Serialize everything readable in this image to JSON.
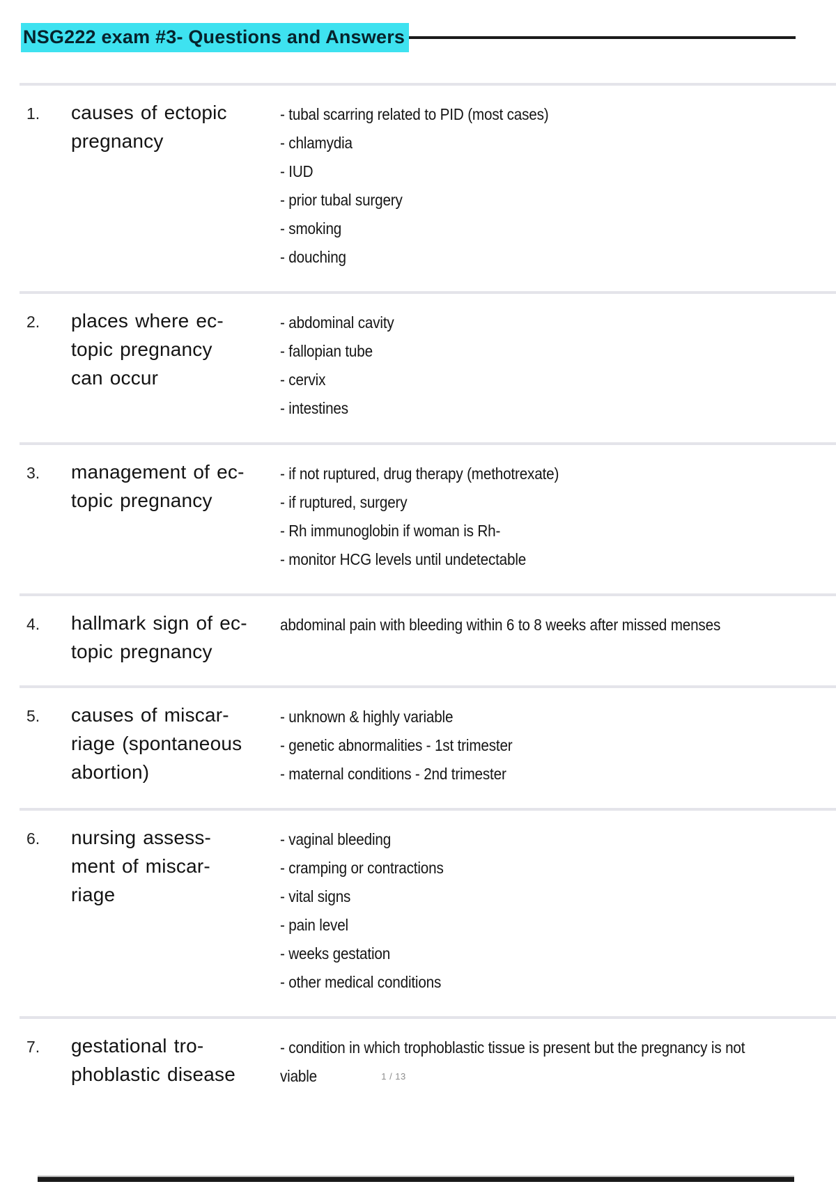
{
  "page": {
    "title": "NSG222 exam #3- Questions and Answers",
    "page_indicator": "1 / 13",
    "highlight_color": "#3ee2f0"
  },
  "items": [
    {
      "number": "1.",
      "question_lines": [
        "causes of ectopic",
        "pregnancy"
      ],
      "answer_lines": [
        "- tubal scarring related to PID (most cases)",
        "- chlamydia",
        "- IUD",
        "- prior tubal surgery",
        "- smoking",
        "- douching"
      ]
    },
    {
      "number": "2.",
      "question_lines": [
        "places where ec-",
        "topic pregnancy",
        "can occur"
      ],
      "answer_lines": [
        "- abdominal cavity",
        "- fallopian tube",
        "- cervix",
        "- intestines"
      ]
    },
    {
      "number": "3.",
      "question_lines": [
        "management of ec-",
        "topic pregnancy"
      ],
      "answer_lines": [
        "- if not ruptured, drug therapy (methotrexate)",
        "- if ruptured, surgery",
        "- Rh immunoglobin if woman is Rh-",
        "- monitor HCG levels until undetectable"
      ]
    },
    {
      "number": "4.",
      "question_lines": [
        "hallmark sign of ec-",
        "topic pregnancy"
      ],
      "answer_lines": [
        "abdominal pain with bleeding within 6 to 8 weeks after missed menses"
      ]
    },
    {
      "number": "5.",
      "question_lines": [
        "causes of miscar-",
        "riage (spontaneous",
        "abortion)"
      ],
      "answer_lines": [
        "- unknown & highly variable",
        "- genetic abnormalities - 1st trimester",
        "- maternal conditions - 2nd trimester"
      ]
    },
    {
      "number": "6.",
      "question_lines": [
        "nursing assess-",
        "ment of miscar-",
        "riage"
      ],
      "answer_lines": [
        "- vaginal bleeding",
        "- cramping or contractions",
        "- vital signs",
        "- pain level",
        "- weeks gestation",
        "- other medical conditions"
      ]
    },
    {
      "number": "7.",
      "question_lines": [
        "gestational tro-",
        "phoblastic disease"
      ],
      "answer_lines": [
        "- condition in which trophoblastic tissue is present but the pregnancy is not",
        "viable"
      ]
    }
  ]
}
